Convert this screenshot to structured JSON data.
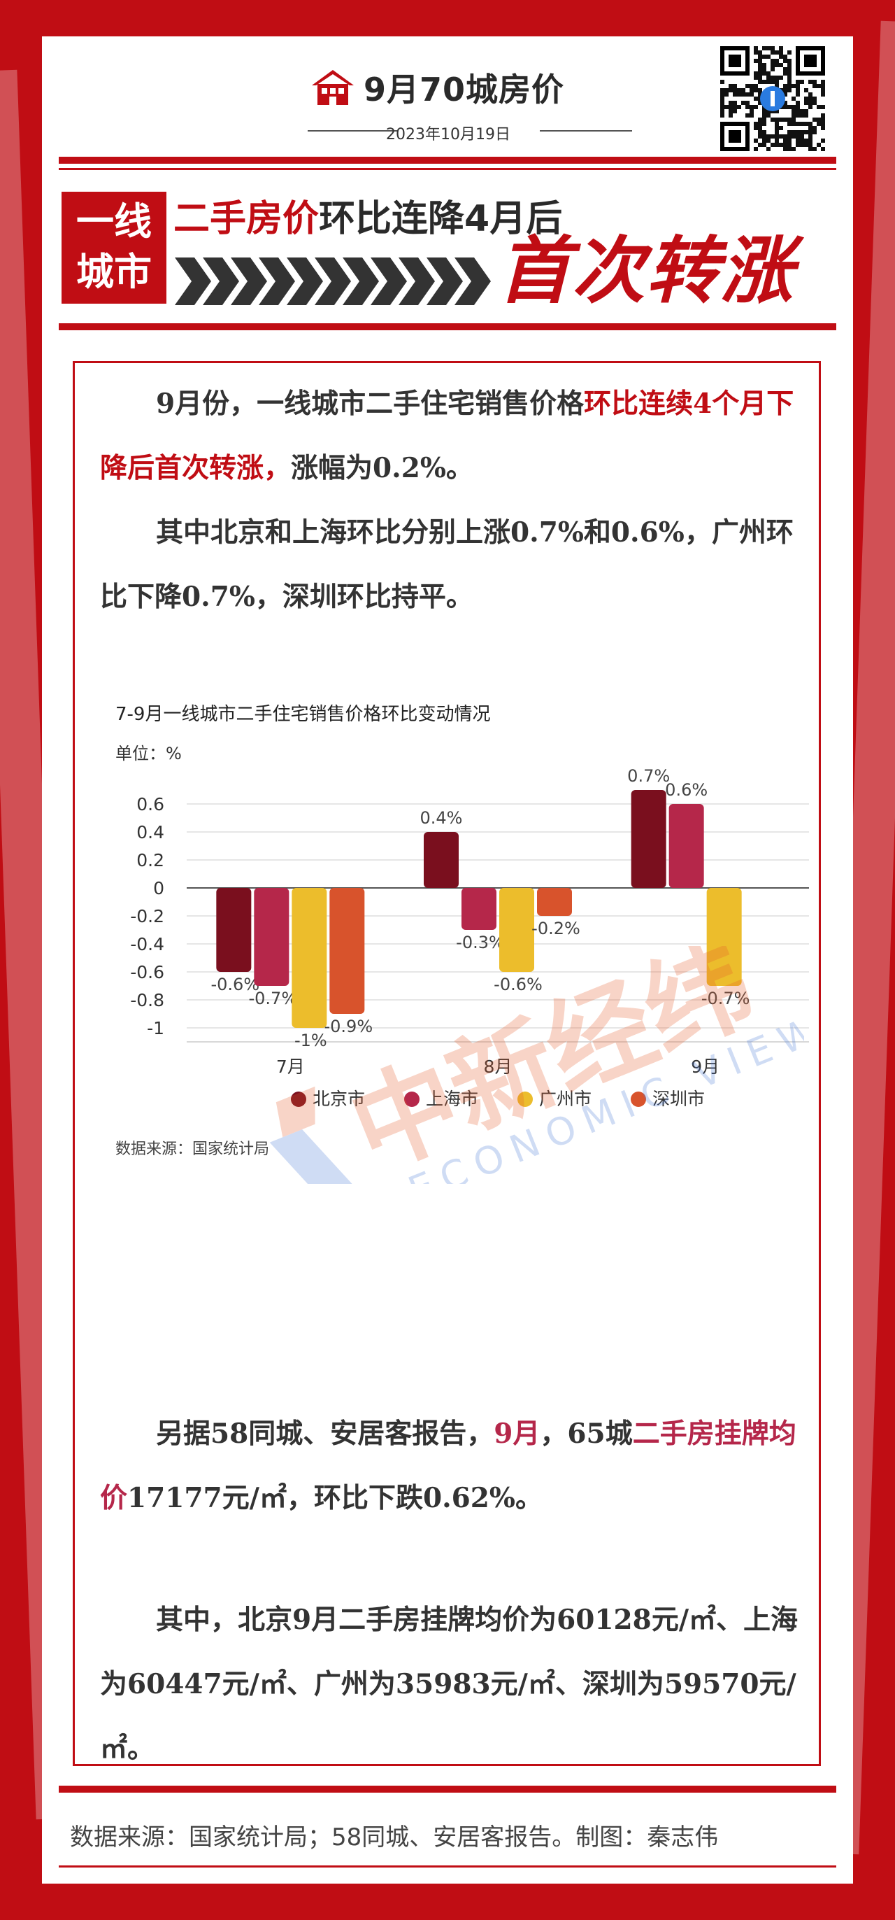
{
  "header": {
    "title": "9月70城房价",
    "date": "2023年10月19日",
    "house_icon": "house-icon",
    "qr_icon": "qr-code-icon"
  },
  "banner": {
    "tag_line1": "一线",
    "tag_line2": "城市",
    "headline_red": "二手房价",
    "headline_rest": "环比连降4月后",
    "headline_big": "首次转涨"
  },
  "paragraph1": {
    "indent_text": "9月份，一线城市二手住宅销售价格",
    "highlight": "环比连续4个月下降后首次转涨，",
    "rest": "涨幅为0.2%。"
  },
  "paragraph2": {
    "text": "其中北京和上海环比分别上涨0.7%和0.6%，广州环比下降0.7%，深圳环比持平。"
  },
  "paragraph3": {
    "part1": "另据58同城、安居客报告，",
    "highlight1": "9月",
    "part2": "，65城",
    "highlight2": "二手房挂牌均价",
    "part3": "17177元/㎡，环比下跌0.62%。"
  },
  "paragraph4": {
    "text": "其中，北京9月二手房挂牌均价为60128元/㎡、上海为60447元/㎡、广州为35983元/㎡、深圳为59570元/㎡。"
  },
  "footer": {
    "text": "数据来源：国家统计局；58同城、安居客报告。制图：秦志伟"
  },
  "watermark": {
    "text": "中新经纬",
    "subtext": "ECONOMIC VIEW"
  },
  "colors": {
    "brand_red": "#c00d14",
    "beijing": "#7a0f1e",
    "shanghai": "#b5274a",
    "guangzhou": "#ecbd2c",
    "shenzhen": "#d8532c"
  },
  "chart_data": {
    "type": "bar",
    "title": "7-9月一线城市二手住宅销售价格环比变动情况",
    "unit_label": "单位：%",
    "source": "数据来源：国家统计局",
    "categories": [
      "7月",
      "8月",
      "9月"
    ],
    "ylim": [
      -1.1,
      0.7
    ],
    "yticks": [
      "0.6",
      "0.4",
      "0.2",
      "0",
      "-0.2",
      "-0.4",
      "-0.6",
      "-0.8",
      "-1"
    ],
    "ytick_values": [
      0.6,
      0.4,
      0.2,
      0,
      -0.2,
      -0.4,
      -0.6,
      -0.8,
      -1
    ],
    "grid": true,
    "legend_position": "bottom",
    "series": [
      {
        "name": "北京市",
        "color": "#7a0f1e",
        "values": [
          -0.6,
          0.4,
          0.7
        ],
        "labels": [
          "-0.6%",
          "0.4%",
          "0.7%"
        ]
      },
      {
        "name": "上海市",
        "color": "#b5274a",
        "values": [
          -0.7,
          -0.3,
          0.6
        ],
        "labels": [
          "-0.7%",
          "-0.3%",
          "0.6%"
        ]
      },
      {
        "name": "广州市",
        "color": "#ecbd2c",
        "values": [
          -1,
          -0.6,
          -0.7
        ],
        "labels": [
          "-1%",
          "-0.6%",
          "-0.7%"
        ]
      },
      {
        "name": "深圳市",
        "color": "#d8532c",
        "values": [
          -0.9,
          -0.2,
          0
        ],
        "labels": [
          "-0.9%",
          "-0.2%",
          ""
        ]
      }
    ]
  }
}
